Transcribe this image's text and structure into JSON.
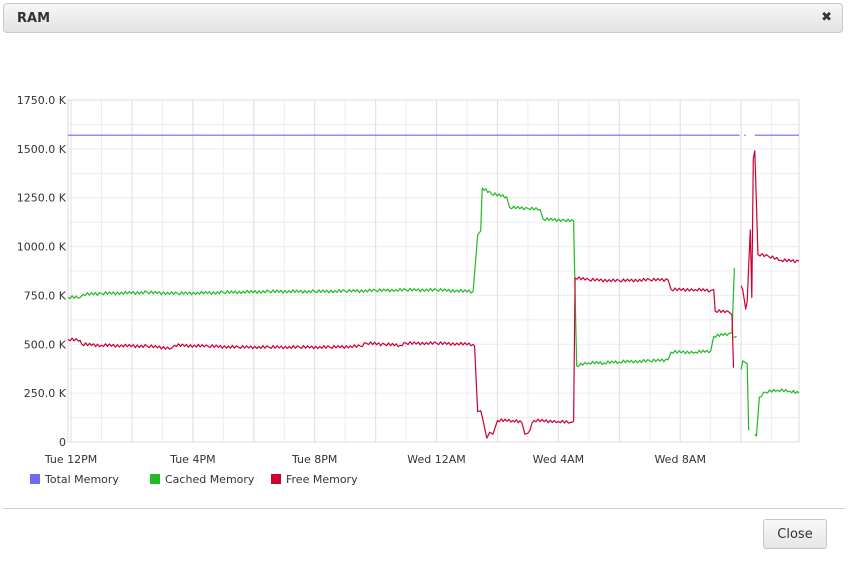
{
  "dialog": {
    "title": "RAM",
    "close_icon": "close-icon",
    "close_button_label": "Close"
  },
  "chart_data": {
    "type": "line",
    "title": "RAM",
    "xlabel": "",
    "ylabel": "",
    "x_unit": "hours since Tue 12PM",
    "xlim": [
      -0.1,
      23.9
    ],
    "ylim": [
      0,
      1750
    ],
    "y_ticks": [
      0,
      250,
      500,
      750,
      1000,
      1250,
      1500,
      1750
    ],
    "y_tick_labels": [
      "0",
      "250.0 K",
      "500.0 K",
      "750.0 K",
      "1000.0 K",
      "1250.0 K",
      "1500.0 K",
      "1750.0 K"
    ],
    "x_ticks": [
      0,
      4,
      8,
      12,
      16,
      20
    ],
    "x_tick_labels": [
      "Tue 12PM",
      "Tue  4PM",
      "Tue  8PM",
      "Wed 12AM",
      "Wed  4AM",
      "Wed  8AM"
    ],
    "grid": true,
    "legend_position": "bottom-left",
    "series": [
      {
        "name": "Total Memory",
        "color": "#6b6bef",
        "segments": [
          [
            [
              -0.1,
              1570
            ],
            [
              21.95,
              1570
            ]
          ],
          [
            [
              22.1,
              1570
            ],
            [
              22.15,
              1570
            ]
          ],
          [
            [
              22.45,
              1570
            ],
            [
              23.9,
              1570
            ]
          ]
        ]
      },
      {
        "name": "Cached Memory",
        "color": "#22bb22",
        "segments": [
          [
            [
              -0.1,
              740
            ],
            [
              0.3,
              740
            ],
            [
              0.4,
              755
            ],
            [
              1.0,
              760
            ],
            [
              2.5,
              765
            ],
            [
              3.5,
              760
            ],
            [
              5.0,
              765
            ],
            [
              6.5,
              770
            ],
            [
              8.0,
              770
            ],
            [
              9.0,
              772
            ],
            [
              10.0,
              775
            ],
            [
              11.0,
              778
            ],
            [
              12.0,
              778
            ],
            [
              13.2,
              770
            ]
          ],
          [
            [
              13.2,
              770
            ],
            [
              13.35,
              1060
            ],
            [
              13.45,
              1080
            ],
            [
              13.5,
              1300
            ],
            [
              13.8,
              1270
            ],
            [
              14.3,
              1255
            ],
            [
              14.4,
              1200
            ],
            [
              15.0,
              1195
            ],
            [
              15.4,
              1190
            ],
            [
              15.5,
              1140
            ],
            [
              16.2,
              1135
            ],
            [
              16.5,
              1130
            ],
            [
              16.5,
              1125
            ]
          ],
          [
            [
              16.5,
              1125
            ],
            [
              16.6,
              390
            ],
            [
              17.0,
              405
            ],
            [
              17.5,
              405
            ],
            [
              18.0,
              410
            ],
            [
              19.0,
              415
            ],
            [
              19.6,
              420
            ],
            [
              19.7,
              460
            ],
            [
              20.5,
              460
            ],
            [
              21.0,
              465
            ],
            [
              21.1,
              540
            ],
            [
              21.6,
              555
            ],
            [
              21.7,
              560
            ]
          ],
          [
            [
              21.7,
              560
            ],
            [
              21.78,
              890
            ]
          ],
          [
            [
              21.75,
              535
            ],
            [
              21.85,
              540
            ]
          ],
          [
            [
              22.0,
              370
            ],
            [
              22.05,
              415
            ],
            [
              22.2,
              400
            ],
            [
              22.25,
              60
            ]
          ],
          [
            [
              22.45,
              40
            ],
            [
              22.5,
              30
            ],
            [
              22.6,
              230
            ],
            [
              22.8,
              255
            ],
            [
              23.2,
              265
            ],
            [
              23.6,
              260
            ],
            [
              23.9,
              250
            ]
          ]
        ]
      },
      {
        "name": "Free Memory",
        "color": "#cc0033",
        "segments": [
          [
            [
              -0.1,
              525
            ],
            [
              0.3,
              520
            ],
            [
              0.35,
              500
            ],
            [
              1.0,
              495
            ],
            [
              2.5,
              490
            ],
            [
              3.3,
              480
            ],
            [
              3.4,
              495
            ],
            [
              4.5,
              490
            ],
            [
              5.5,
              485
            ],
            [
              6.5,
              485
            ],
            [
              7.5,
              485
            ],
            [
              8.5,
              485
            ],
            [
              9.5,
              490
            ],
            [
              9.7,
              505
            ],
            [
              10.3,
              500
            ],
            [
              10.8,
              495
            ],
            [
              11.0,
              505
            ],
            [
              12.0,
              505
            ],
            [
              13.2,
              500
            ]
          ],
          [
            [
              13.2,
              500
            ],
            [
              13.25,
              490
            ],
            [
              13.35,
              155
            ],
            [
              13.45,
              160
            ],
            [
              13.5,
              130
            ],
            [
              13.65,
              20
            ],
            [
              13.75,
              50
            ],
            [
              13.85,
              40
            ],
            [
              14.0,
              110
            ],
            [
              14.5,
              110
            ],
            [
              14.8,
              100
            ],
            [
              14.9,
              40
            ],
            [
              15.0,
              45
            ],
            [
              15.2,
              110
            ],
            [
              16.0,
              105
            ],
            [
              16.4,
              100
            ],
            [
              16.5,
              105
            ]
          ],
          [
            [
              16.5,
              105
            ],
            [
              16.55,
              840
            ],
            [
              17.0,
              830
            ],
            [
              18.0,
              825
            ],
            [
              19.0,
              830
            ],
            [
              19.6,
              830
            ],
            [
              19.7,
              780
            ],
            [
              20.5,
              780
            ],
            [
              21.0,
              775
            ],
            [
              21.1,
              780
            ],
            [
              21.15,
              670
            ],
            [
              21.6,
              665
            ],
            [
              21.7,
              650
            ],
            [
              21.75,
              380
            ]
          ],
          [
            [
              22.0,
              800
            ],
            [
              22.05,
              780
            ],
            [
              22.15,
              680
            ],
            [
              22.2,
              720
            ],
            [
              22.3,
              1085
            ],
            [
              22.32,
              950
            ],
            [
              22.35,
              740
            ],
            [
              22.4,
              1450
            ],
            [
              22.45,
              1490
            ],
            [
              22.55,
              960
            ],
            [
              22.9,
              950
            ],
            [
              23.3,
              930
            ],
            [
              23.9,
              925
            ]
          ]
        ]
      }
    ]
  }
}
